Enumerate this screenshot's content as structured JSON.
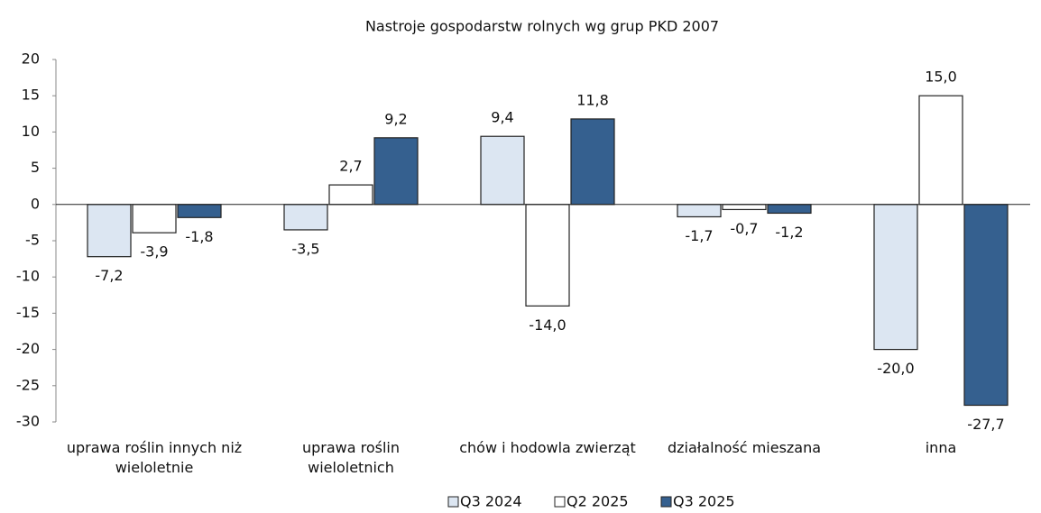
{
  "chart_data": {
    "type": "bar",
    "title": "Nastroje gospodarstw rolnych wg grup PKD 2007",
    "categories": [
      "uprawa roślin innych niż wieloletnie",
      "uprawa roślin wieloletnich",
      "chów i hodowla zwierząt",
      "działalność mieszana",
      "inna"
    ],
    "series": [
      {
        "name": "Q3 2024",
        "color": "#dce6f2",
        "values": [
          -7.2,
          -3.5,
          9.4,
          -1.7,
          -20.0
        ],
        "value_labels": [
          "-7,2",
          "-3,5",
          "9,4",
          "-1,7",
          "-20,0"
        ]
      },
      {
        "name": "Q2 2025",
        "color": "#ffffff",
        "values": [
          -3.9,
          2.7,
          -14.0,
          -0.7,
          15.0
        ],
        "value_labels": [
          "-3,9",
          "2,7",
          "-14,0",
          "-0,7",
          "15,0"
        ]
      },
      {
        "name": "Q3 2025",
        "color": "#35608f",
        "values": [
          -1.8,
          9.2,
          11.8,
          -1.2,
          -27.7
        ],
        "value_labels": [
          "-1,8",
          "9,2",
          "11,8",
          "-1,2",
          "-27,7"
        ]
      }
    ],
    "ylim": [
      -30,
      20
    ],
    "yticks": [
      -30,
      -25,
      -20,
      -15,
      -10,
      -5,
      0,
      5,
      10,
      15,
      20
    ],
    "grid": false,
    "legend": "bottom"
  }
}
